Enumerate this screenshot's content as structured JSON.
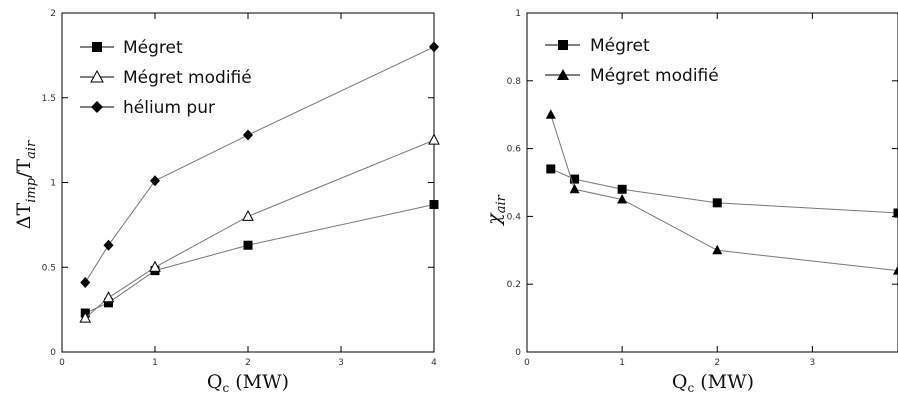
{
  "chart_data": [
    {
      "type": "line",
      "xlabel": "Q$_c$ (MW)",
      "xlabel_main": "Q",
      "xlabel_sub": "c",
      "xlabel_unit": " (MW)",
      "ylabel_main": "ΔT",
      "ylabel_sub1": "imp",
      "ylabel_mid": "/T",
      "ylabel_sub2": "air",
      "xlim": [
        0,
        4
      ],
      "ylim": [
        0,
        2
      ],
      "xticks": [
        "0",
        "1",
        "2",
        "3",
        "4"
      ],
      "yticks": [
        "0",
        "0.5",
        "1",
        "1.5",
        "2"
      ],
      "legend_position": "top-left",
      "series": [
        {
          "name": "Mégret",
          "marker": "square-filled",
          "x": [
            0.25,
            0.5,
            1,
            2,
            4
          ],
          "y": [
            0.23,
            0.29,
            0.48,
            0.63,
            0.87
          ]
        },
        {
          "name": "Mégret modifié",
          "marker": "triangle-open",
          "x": [
            0.25,
            0.5,
            1,
            2,
            4
          ],
          "y": [
            0.2,
            0.32,
            0.5,
            0.8,
            1.25
          ]
        },
        {
          "name": "hélium pur",
          "marker": "diamond-filled",
          "x": [
            0.25,
            0.5,
            1,
            2,
            4
          ],
          "y": [
            0.41,
            0.63,
            1.01,
            1.28,
            1.8
          ]
        }
      ]
    },
    {
      "type": "line",
      "xlabel": "Q$_c$ (MW)",
      "xlabel_main": "Q",
      "xlabel_sub": "c",
      "xlabel_unit": " (MW)",
      "ylabel_main": "χ",
      "ylabel_sub": "air",
      "xlim": [
        0,
        3.9
      ],
      "ylim": [
        0,
        1
      ],
      "xticks": [
        "0",
        "1",
        "2",
        "3"
      ],
      "yticks": [
        "0",
        "0.2",
        "0.4",
        "0.6",
        "0.8",
        "1"
      ],
      "legend_position": "top-left",
      "series": [
        {
          "name": "Mégret",
          "marker": "square-filled",
          "x": [
            0.25,
            0.5,
            1,
            2,
            3.9
          ],
          "y": [
            0.54,
            0.51,
            0.48,
            0.44,
            0.41
          ]
        },
        {
          "name": "Mégret modifié",
          "marker": "triangle-filled",
          "x": [
            0.25,
            0.5,
            1,
            2,
            3.9
          ],
          "y": [
            0.7,
            0.48,
            0.45,
            0.3,
            0.24
          ]
        }
      ]
    }
  ]
}
